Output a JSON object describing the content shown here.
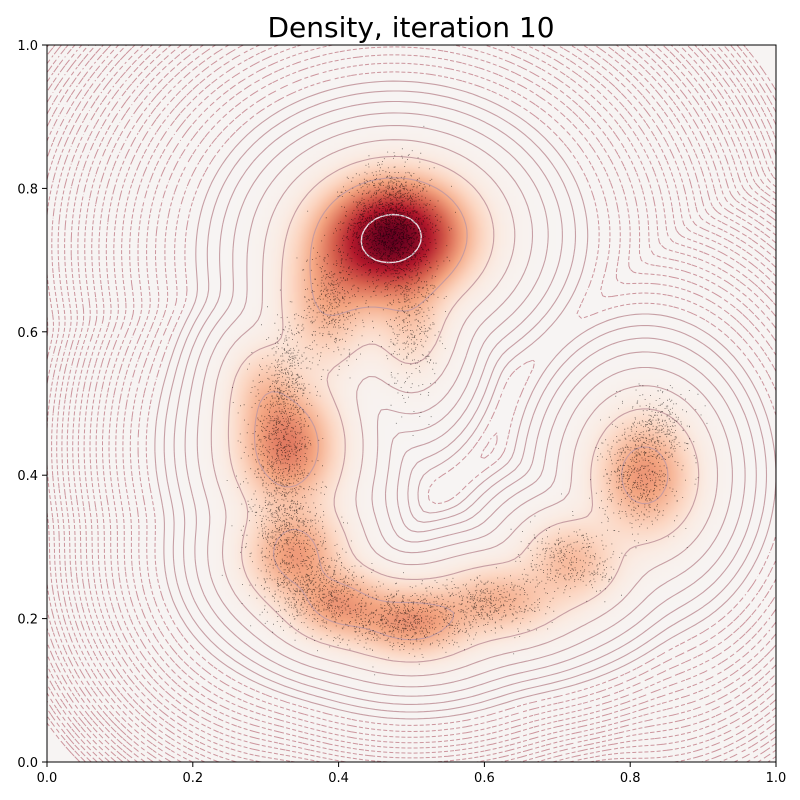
{
  "chart_data": {
    "type": "heatmap",
    "title": "Density, iteration 10",
    "xlabel": "",
    "ylabel": "",
    "xlim": [
      0.0,
      1.0
    ],
    "ylim": [
      0.0,
      1.0
    ],
    "x_ticks": [
      "0.0",
      "0.2",
      "0.4",
      "0.6",
      "0.8",
      "1.0"
    ],
    "y_ticks": [
      "0.0",
      "0.2",
      "0.4",
      "0.6",
      "0.8",
      "1.0"
    ],
    "colormap": "RdBu_r",
    "colors": {
      "background": "#f7f4f3",
      "peak": "#7a0019",
      "contour_inner": "#efe5ea",
      "contour_solid": "#c49aa0",
      "contour_dashed": "#c98f98",
      "sample_points": "#000000"
    },
    "grid": false,
    "density_modes": [
      {
        "x": 0.48,
        "y": 0.73,
        "weight": 1.0
      },
      {
        "x": 0.33,
        "y": 0.44,
        "weight": 0.38
      },
      {
        "x": 0.34,
        "y": 0.27,
        "weight": 0.3
      },
      {
        "x": 0.5,
        "y": 0.2,
        "weight": 0.3
      },
      {
        "x": 0.65,
        "y": 0.24,
        "weight": 0.22
      },
      {
        "x": 0.83,
        "y": 0.42,
        "weight": 0.3
      }
    ],
    "sample_clusters": [
      {
        "x": 0.47,
        "y": 0.75,
        "count": 1600
      },
      {
        "x": 0.5,
        "y": 0.63,
        "count": 450
      },
      {
        "x": 0.39,
        "y": 0.64,
        "count": 400
      },
      {
        "x": 0.33,
        "y": 0.54,
        "count": 350
      },
      {
        "x": 0.32,
        "y": 0.44,
        "count": 700
      },
      {
        "x": 0.33,
        "y": 0.32,
        "count": 600
      },
      {
        "x": 0.37,
        "y": 0.24,
        "count": 600
      },
      {
        "x": 0.48,
        "y": 0.2,
        "count": 700
      },
      {
        "x": 0.6,
        "y": 0.22,
        "count": 450
      },
      {
        "x": 0.72,
        "y": 0.28,
        "count": 350
      },
      {
        "x": 0.81,
        "y": 0.4,
        "count": 550
      },
      {
        "x": 0.84,
        "y": 0.47,
        "count": 300
      }
    ]
  }
}
